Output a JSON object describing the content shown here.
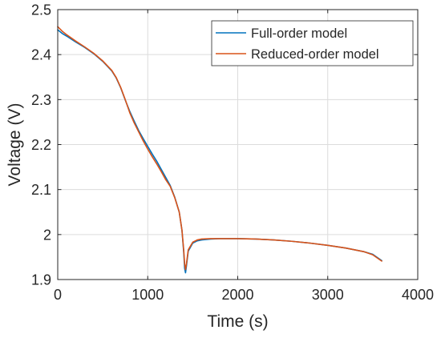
{
  "chart_data": {
    "type": "line",
    "title": "",
    "xlabel": "Time (s)",
    "ylabel": "Voltage (V)",
    "xlim": [
      0,
      4000
    ],
    "ylim": [
      1.9,
      2.5
    ],
    "xticks": [
      0,
      1000,
      2000,
      3000,
      4000
    ],
    "yticks": [
      1.9,
      2,
      2.1,
      2.2,
      2.3,
      2.4,
      2.5
    ],
    "xtick_labels": [
      "0",
      "1000",
      "2000",
      "3000",
      "4000"
    ],
    "ytick_labels": [
      "1.9",
      "2",
      "2.1",
      "2.2",
      "2.3",
      "2.4",
      "2.5"
    ],
    "grid": true,
    "legend_position": "top-right",
    "series": [
      {
        "name": "Full-order model",
        "color": "#0072BD",
        "x": [
          0,
          50,
          100,
          200,
          300,
          400,
          500,
          600,
          650,
          700,
          750,
          800,
          850,
          900,
          950,
          1000,
          1050,
          1100,
          1150,
          1200,
          1250,
          1300,
          1350,
          1380,
          1400,
          1410,
          1420,
          1430,
          1450,
          1500,
          1550,
          1600,
          1700,
          1800,
          1900,
          2000,
          2200,
          2400,
          2600,
          2800,
          3000,
          3200,
          3400,
          3500,
          3600
        ],
        "y": [
          2.455,
          2.447,
          2.441,
          2.428,
          2.416,
          2.402,
          2.385,
          2.364,
          2.348,
          2.326,
          2.299,
          2.274,
          2.252,
          2.231,
          2.213,
          2.196,
          2.179,
          2.163,
          2.145,
          2.127,
          2.109,
          2.083,
          2.05,
          2.01,
          1.96,
          1.925,
          1.915,
          1.93,
          1.963,
          1.981,
          1.986,
          1.988,
          1.99,
          1.991,
          1.991,
          1.991,
          1.99,
          1.988,
          1.985,
          1.981,
          1.976,
          1.97,
          1.962,
          1.956,
          1.942
        ]
      },
      {
        "name": "Reduced-order model",
        "color": "#D95319",
        "x": [
          0,
          50,
          100,
          200,
          300,
          400,
          500,
          600,
          650,
          700,
          750,
          800,
          850,
          900,
          950,
          1000,
          1050,
          1100,
          1150,
          1200,
          1250,
          1300,
          1350,
          1380,
          1400,
          1410,
          1420,
          1430,
          1450,
          1500,
          1550,
          1600,
          1700,
          1800,
          1900,
          2000,
          2200,
          2400,
          2600,
          2800,
          3000,
          3200,
          3400,
          3500,
          3600
        ],
        "y": [
          2.462,
          2.452,
          2.444,
          2.43,
          2.417,
          2.403,
          2.386,
          2.365,
          2.349,
          2.327,
          2.3,
          2.271,
          2.248,
          2.228,
          2.208,
          2.19,
          2.173,
          2.157,
          2.14,
          2.122,
          2.107,
          2.082,
          2.05,
          2.01,
          1.965,
          1.935,
          1.922,
          1.935,
          1.966,
          1.983,
          1.988,
          1.99,
          1.991,
          1.991,
          1.991,
          1.991,
          1.99,
          1.988,
          1.985,
          1.981,
          1.976,
          1.97,
          1.962,
          1.955,
          1.941
        ]
      }
    ]
  }
}
